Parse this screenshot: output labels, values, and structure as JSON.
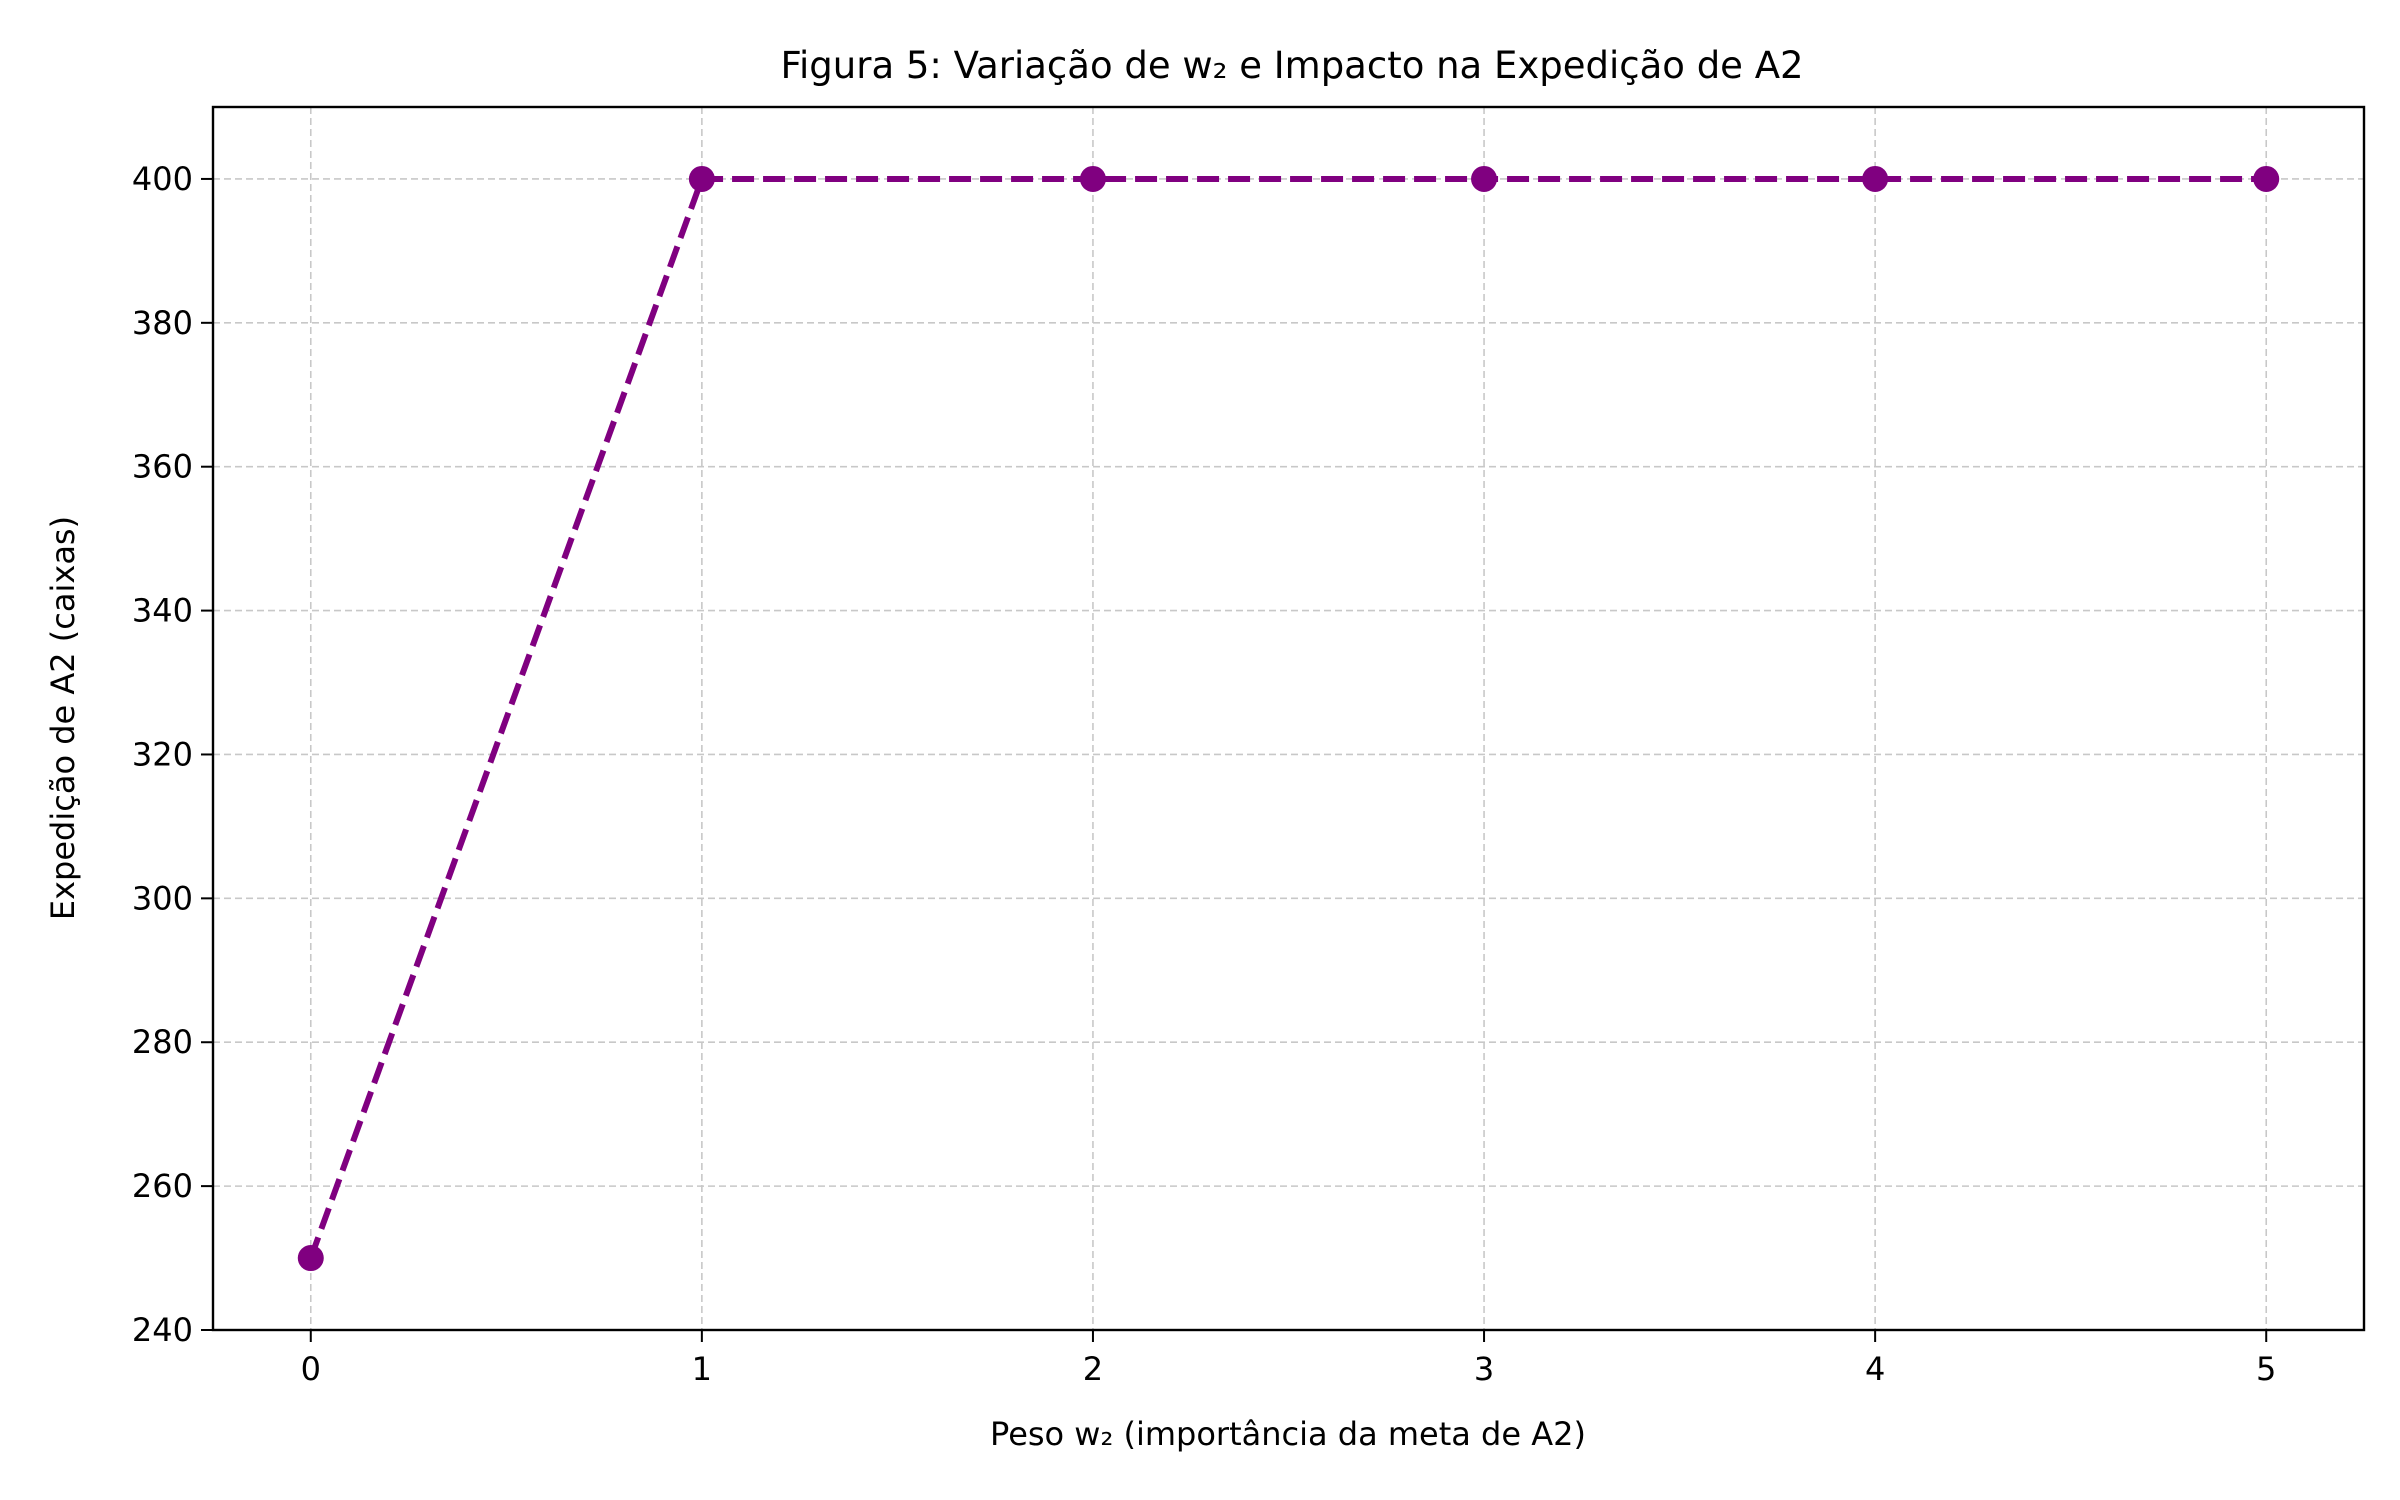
{
  "chart_data": {
    "type": "line",
    "title": "Figura 5: Variação de w₂ e Impacto na Expedição de A2",
    "xlabel": "Peso w₂ (importância da meta de A2)",
    "ylabel": "Expedição de A2 (caixas)",
    "x": [
      0,
      1,
      2,
      3,
      4,
      5
    ],
    "series": [
      {
        "values": [
          250,
          400,
          400,
          400,
          400,
          400
        ]
      }
    ],
    "xlim": [
      -0.25,
      5.25
    ],
    "ylim": [
      240,
      410
    ],
    "xticks": [
      0,
      1,
      2,
      3,
      4,
      5
    ],
    "yticks": [
      240,
      260,
      280,
      300,
      320,
      340,
      360,
      380,
      400
    ],
    "grid": true,
    "line_style": "dashed",
    "marker": "circle",
    "series_color": "#800080",
    "grid_color": "#c8c8c8"
  }
}
